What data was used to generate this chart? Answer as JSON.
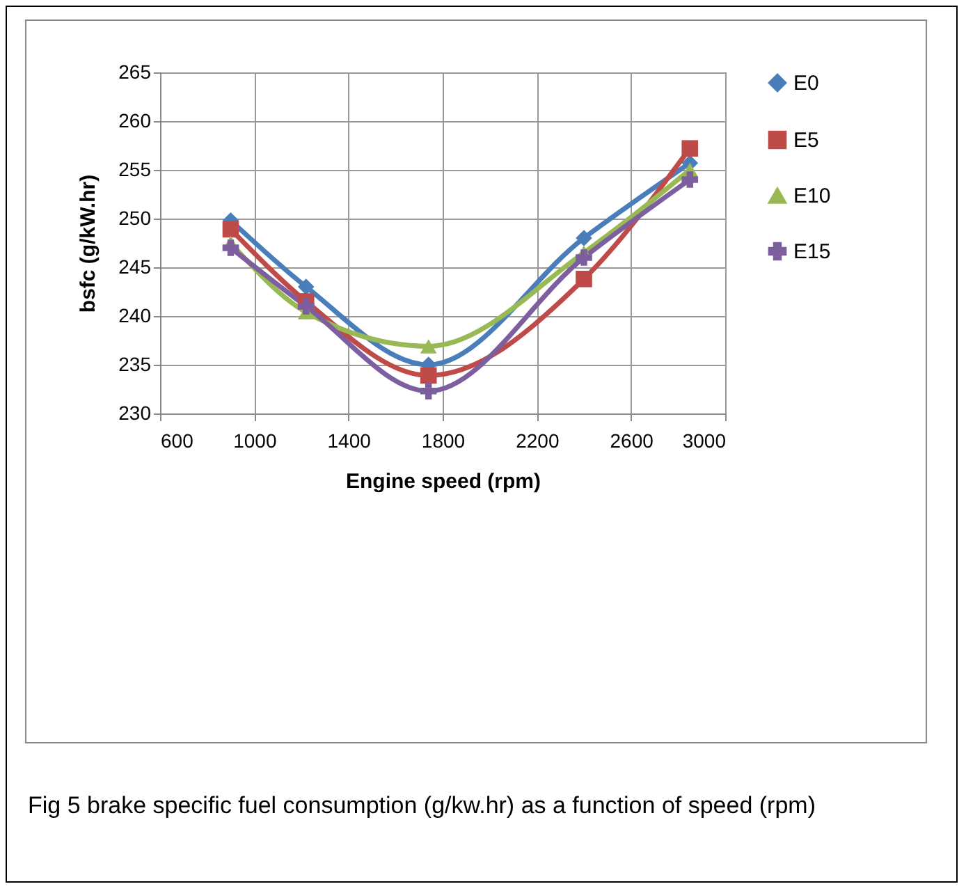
{
  "chart_data": {
    "type": "line",
    "xlabel": "Engine speed (rpm)",
    "ylabel": "bsfc (g/kW.hr)",
    "x": [
      900,
      1220,
      1740,
      2400,
      2850
    ],
    "series": [
      {
        "name": "E0",
        "color": "#4a7ebb",
        "marker": "diamond",
        "values": [
          249.8,
          243,
          235,
          248,
          255.7
        ]
      },
      {
        "name": "E5",
        "color": "#be4b48",
        "marker": "square",
        "values": [
          248.9,
          241.5,
          233.9,
          243.8,
          257.2
        ]
      },
      {
        "name": "E10",
        "color": "#98b954",
        "marker": "triangle",
        "values": [
          247.5,
          240.4,
          236.9,
          246.5,
          255
        ]
      },
      {
        "name": "E15",
        "color": "#7d5fa0",
        "marker": "cross",
        "values": [
          247,
          241,
          232.3,
          246,
          254
        ]
      }
    ],
    "xlim": [
      600,
      3000
    ],
    "xticks": [
      600,
      1000,
      1400,
      1800,
      2200,
      2600,
      3000
    ],
    "ylim": [
      230,
      265
    ],
    "yticks": [
      230,
      235,
      240,
      245,
      250,
      255,
      260,
      265
    ],
    "grid": true,
    "legend": "right",
    "annotations": [
      "Fig 5 brake specific fuel consumption (g/kw.hr) as a function of speed (rpm)"
    ]
  }
}
